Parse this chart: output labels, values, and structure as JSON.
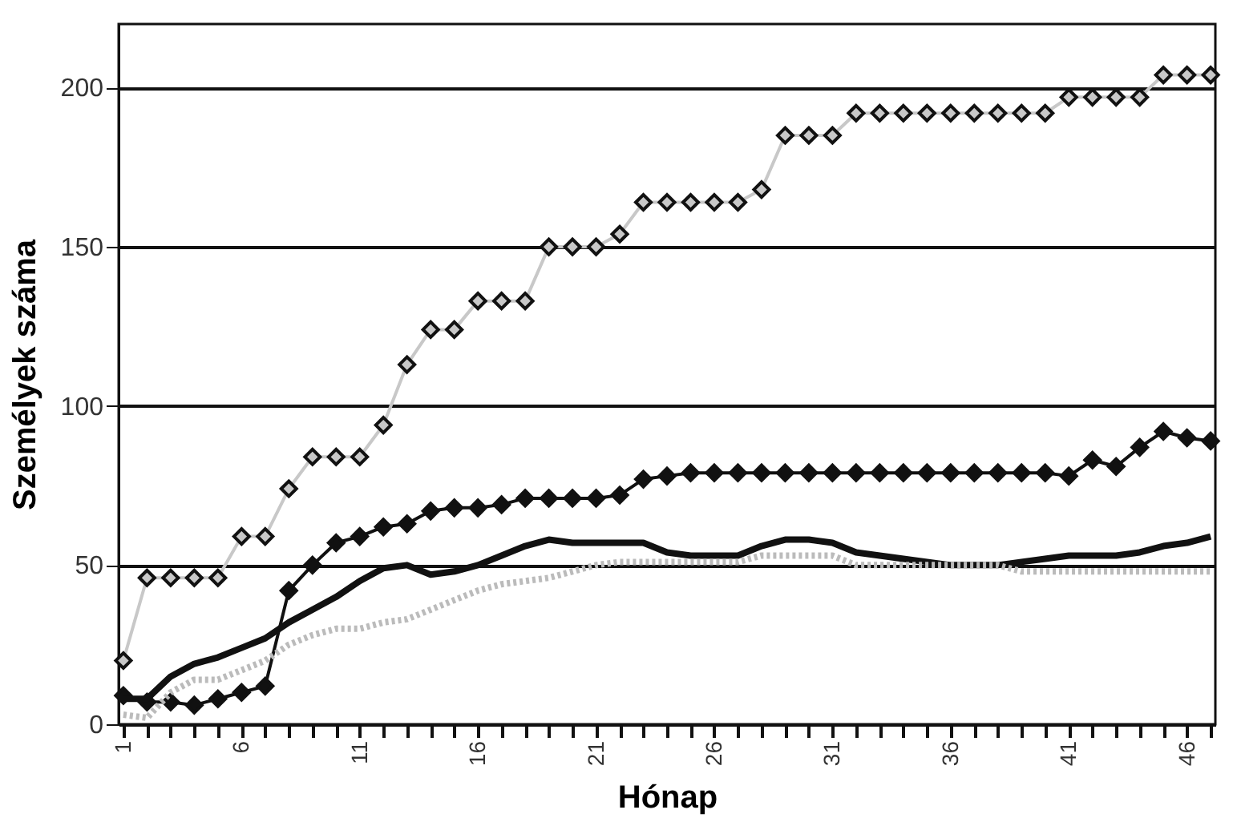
{
  "chart_data": {
    "type": "line",
    "xlabel": "Hónap",
    "ylabel": "Személyek száma",
    "categories": [
      "1",
      null,
      null,
      null,
      null,
      "6",
      null,
      null,
      null,
      null,
      "11",
      null,
      null,
      null,
      null,
      "16",
      null,
      null,
      null,
      null,
      "21",
      null,
      null,
      null,
      null,
      "26",
      null,
      null,
      null,
      null,
      "31",
      null,
      null,
      null,
      null,
      "36",
      null,
      null,
      null,
      null,
      "41",
      null,
      null,
      null,
      null,
      "46",
      null
    ],
    "series": [
      {
        "color": "#c8c8c8",
        "marker": "diamond",
        "line_style": "solid",
        "values": [
          20,
          46,
          46,
          46,
          46,
          59,
          59,
          74,
          84,
          84,
          84,
          94,
          113,
          124,
          124,
          133,
          133,
          133,
          150,
          150,
          150,
          154,
          164,
          164,
          164,
          164,
          164,
          168,
          185,
          185,
          185,
          192,
          192,
          192,
          192,
          192,
          192,
          192,
          192,
          192,
          197,
          197,
          197,
          197,
          204,
          204,
          204
        ]
      },
      {
        "color": "#111111",
        "marker": "diamond",
        "line_style": "solid",
        "values": [
          9,
          7,
          7,
          6,
          8,
          10,
          12,
          42,
          50,
          57,
          59,
          62,
          63,
          67,
          68,
          68,
          69,
          71,
          71,
          71,
          71,
          72,
          77,
          78,
          79,
          79,
          79,
          79,
          79,
          79,
          79,
          79,
          79,
          79,
          79,
          79,
          79,
          79,
          79,
          79,
          78,
          83,
          81,
          87,
          92,
          90,
          89
        ]
      },
      {
        "color": "#111111",
        "marker": "none",
        "line_style": "solid",
        "values": [
          8,
          8,
          15,
          19,
          21,
          24,
          27,
          32,
          36,
          40,
          45,
          49,
          50,
          47,
          48,
          50,
          53,
          56,
          58,
          57,
          57,
          57,
          57,
          54,
          53,
          53,
          53,
          56,
          58,
          58,
          57,
          54,
          53,
          52,
          51,
          50,
          50,
          50,
          51,
          52,
          53,
          53,
          53,
          54,
          56,
          57,
          59
        ]
      },
      {
        "color": "#bbbbbb",
        "marker": "none",
        "line_style": "dotted",
        "values": [
          3,
          2,
          10,
          14,
          14,
          17,
          20,
          25,
          28,
          30,
          30,
          32,
          33,
          36,
          39,
          42,
          44,
          45,
          46,
          48,
          50,
          51,
          51,
          51,
          51,
          51,
          51,
          53,
          53,
          53,
          53,
          50,
          50,
          50,
          50,
          50,
          50,
          50,
          48,
          48,
          48,
          48,
          48,
          48,
          48,
          48,
          48
        ]
      }
    ],
    "ylim": [
      0,
      220
    ],
    "yticks": [
      0,
      50,
      100,
      150,
      200
    ],
    "grid": "y"
  }
}
